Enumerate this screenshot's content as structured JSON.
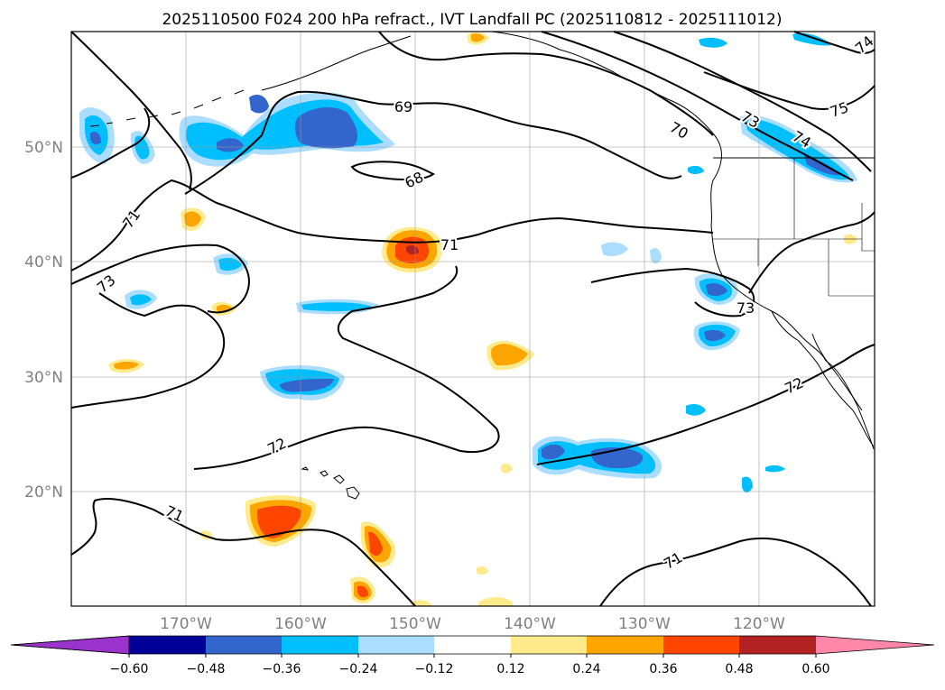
{
  "title": "2025110500 F024 200 hPa refract., IVT Landfall PC (2025110812 - 2025111012)",
  "map": {
    "lat_labels": [
      {
        "lat": 50,
        "text": "50°N"
      },
      {
        "lat": 40,
        "text": "40°N"
      },
      {
        "lat": 30,
        "text": "30°N"
      },
      {
        "lat": 20,
        "text": "20°N"
      }
    ],
    "lon_labels": [
      {
        "lon": -170,
        "text": "170°W"
      },
      {
        "lon": -160,
        "text": "160°W"
      },
      {
        "lon": -150,
        "text": "150°W"
      },
      {
        "lon": -140,
        "text": "140°W"
      },
      {
        "lon": -130,
        "text": "130°W"
      },
      {
        "lon": -120,
        "text": "120°W"
      }
    ],
    "extent": {
      "lon_min": -180,
      "lon_max": -110,
      "lat_min": 10,
      "lat_max": 60
    },
    "contour_labels": [
      {
        "text": "69",
        "lon": -148.9,
        "lat": 54.2
      },
      {
        "text": "68",
        "lon": -148.0,
        "lat": 47.2
      },
      {
        "text": "71",
        "lon": -175.0,
        "lat": 44.0
      },
      {
        "text": "71",
        "lon": -146.8,
        "lat": 41.6
      },
      {
        "text": "73",
        "lon": -177.1,
        "lat": 38.2
      },
      {
        "text": "70",
        "lon": -126.6,
        "lat": 50.7
      },
      {
        "text": "73",
        "lon": -122.8,
        "lat": 52.3
      },
      {
        "text": "74",
        "lon": -119.1,
        "lat": 50.2
      },
      {
        "text": "75",
        "lon": -113.0,
        "lat": 54.0
      },
      {
        "text": "73",
        "lon": -121.4,
        "lat": 36.9
      },
      {
        "text": "72",
        "lon": -116.3,
        "lat": 29.6
      },
      {
        "text": "72",
        "lon": -161.2,
        "lat": 24.0
      },
      {
        "text": "71",
        "lon": -169.0,
        "lat": 17.7
      },
      {
        "text": "71",
        "lon": -130.1,
        "lat": 13.9
      },
      {
        "text": "74",
        "lon": -111.0,
        "lat": 59.2
      }
    ]
  },
  "colorbar": {
    "colors": [
      "#9933cc",
      "#000099",
      "#3366cc",
      "#00bfff",
      "#aaddff",
      "#ffffff",
      "#ffeb8c",
      "#ffa500",
      "#ff4500",
      "#b22222",
      "#ff88aa"
    ],
    "ticks": [
      "−0.60",
      "−0.48",
      "−0.36",
      "−0.24",
      "−0.12",
      "0.12",
      "0.24",
      "0.36",
      "0.48",
      "0.60"
    ],
    "tick_values": [
      -0.6,
      -0.48,
      -0.36,
      -0.24,
      -0.12,
      0.12,
      0.24,
      0.36,
      0.48,
      0.6
    ]
  }
}
